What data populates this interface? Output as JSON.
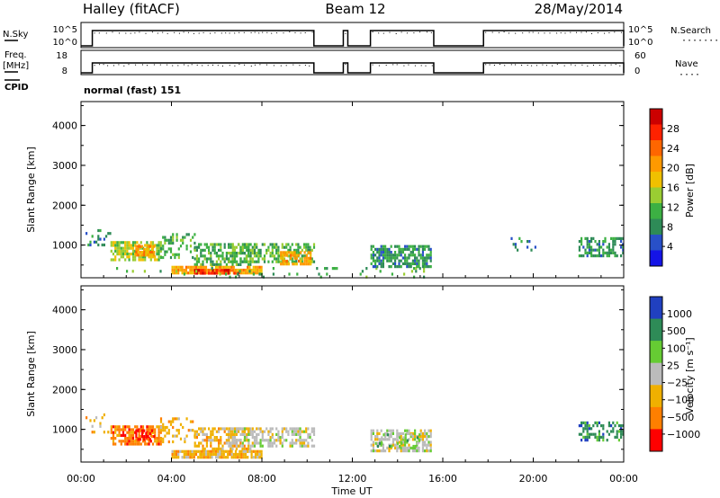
{
  "header": {
    "station": "Halley (fitACF)",
    "beam": "Beam 12",
    "date": "28/May/2014"
  },
  "strips": {
    "nsky_label": "N.Sky",
    "nsky_ticks": [
      "10^5",
      "10^0"
    ],
    "nsearch_label": "N.Search",
    "nsearch_ticks": [
      "10^5",
      "10^0"
    ],
    "freq_label_1": "Freq.",
    "freq_label_2": "[MHz]",
    "freq_ticks": [
      "18",
      "8"
    ],
    "nave_label": "Nave",
    "nave_ticks": [
      "60",
      "0"
    ],
    "cpid_label": "CPID",
    "cpid_value": "normal (fast) 151"
  },
  "colors": {
    "power": [
      "#1414e6",
      "#2850c8",
      "#2e8b57",
      "#3cb043",
      "#9acd32",
      "#f0c000",
      "#ff9900",
      "#ff6600",
      "#ff2200",
      "#cc0000"
    ],
    "velocity": [
      "#2040c0",
      "#2e8b57",
      "#66cc33",
      "#bbbbbb",
      "#f0b000",
      "#ff7f00",
      "#ff0000"
    ]
  },
  "chart_data": [
    {
      "type": "heatmap",
      "panel": "power",
      "ylabel": "Slant Range [km]",
      "yticks": [
        "1000",
        "2000",
        "3000",
        "4000"
      ],
      "ylim": [
        180,
        4600
      ],
      "xlim": [
        0,
        24
      ],
      "colorbar_label": "Power [dB]",
      "colorbar_ticks": [
        "4",
        "8",
        "12",
        "16",
        "20",
        "24",
        "28"
      ],
      "colorbar_range": [
        0,
        32
      ],
      "regions": [
        {
          "t": [
            0.2,
            1.3
          ],
          "r": [
            900,
            1400
          ],
          "level": 8,
          "density": 0.15
        },
        {
          "t": [
            1.3,
            3.5
          ],
          "r": [
            600,
            1100
          ],
          "level": 14,
          "density": 0.7
        },
        {
          "t": [
            2.4,
            3.2
          ],
          "r": [
            750,
            1000
          ],
          "level": 22,
          "density": 0.8
        },
        {
          "t": [
            3.5,
            5.0
          ],
          "r": [
            700,
            1300
          ],
          "level": 10,
          "density": 0.35
        },
        {
          "t": [
            5.0,
            7.5
          ],
          "r": [
            500,
            1050
          ],
          "level": 10,
          "density": 0.55
        },
        {
          "t": [
            6.5,
            10.3
          ],
          "r": [
            550,
            1050
          ],
          "level": 11,
          "density": 0.6
        },
        {
          "t": [
            8.8,
            10.2
          ],
          "r": [
            550,
            850
          ],
          "level": 20,
          "density": 0.6
        },
        {
          "t": [
            4.0,
            8.0
          ],
          "r": [
            280,
            480
          ],
          "level": 20,
          "density": 0.85
        },
        {
          "t": [
            5.0,
            7.0
          ],
          "r": [
            280,
            400
          ],
          "level": 28,
          "density": 0.8
        },
        {
          "t": [
            0.5,
            16.0
          ],
          "r": [
            190,
            450
          ],
          "level": 10,
          "density": 0.08
        },
        {
          "t": [
            12.8,
            15.5
          ],
          "r": [
            450,
            1000
          ],
          "level": 8,
          "density": 0.7
        },
        {
          "t": [
            19.0,
            20.5
          ],
          "r": [
            900,
            1200
          ],
          "level": 6,
          "density": 0.15
        },
        {
          "t": [
            22.0,
            24.0
          ],
          "r": [
            700,
            1200
          ],
          "level": 8,
          "density": 0.45
        }
      ]
    },
    {
      "type": "heatmap",
      "panel": "velocity",
      "ylabel": "Slant Range [km]",
      "yticks": [
        "1000",
        "2000",
        "3000",
        "4000"
      ],
      "ylim": [
        180,
        4600
      ],
      "xlim": [
        0,
        24
      ],
      "xlabel": "Time UT",
      "xticks": [
        "00:00",
        "04:00",
        "08:00",
        "12:00",
        "16:00",
        "20:00",
        "00:00"
      ],
      "colorbar_label": "Velocity [m s⁻¹]",
      "colorbar_ticks": [
        "1000",
        "500",
        "100",
        "25",
        "−25",
        "−100",
        "−500",
        "−1000"
      ],
      "regions": [
        {
          "t": [
            0.2,
            1.3
          ],
          "r": [
            900,
            1400
          ],
          "level": 4,
          "density": 0.15
        },
        {
          "t": [
            1.3,
            3.5
          ],
          "r": [
            600,
            1100
          ],
          "level": 5,
          "density": 0.7
        },
        {
          "t": [
            2.4,
            3.2
          ],
          "r": [
            750,
            1000
          ],
          "level": 6,
          "density": 0.7
        },
        {
          "t": [
            3.5,
            5.0
          ],
          "r": [
            700,
            1300
          ],
          "level": 4,
          "density": 0.3
        },
        {
          "t": [
            5.0,
            7.5
          ],
          "r": [
            500,
            1050
          ],
          "level": 4,
          "density": 0.55
        },
        {
          "t": [
            6.5,
            10.3
          ],
          "r": [
            550,
            1050
          ],
          "level": 3,
          "density": 0.6
        },
        {
          "t": [
            4.0,
            8.0
          ],
          "r": [
            280,
            480
          ],
          "level": 4,
          "density": 0.85
        },
        {
          "t": [
            12.8,
            15.5
          ],
          "r": [
            450,
            1000
          ],
          "level": 3,
          "density": 0.7
        },
        {
          "t": [
            13.0,
            15.0
          ],
          "r": [
            600,
            900
          ],
          "level": 2,
          "density": 0.3
        },
        {
          "t": [
            22.0,
            24.0
          ],
          "r": [
            700,
            1200
          ],
          "level": 1,
          "density": 0.45
        }
      ]
    }
  ],
  "operation": {
    "active_intervals": [
      [
        0.5,
        10.3
      ],
      [
        11.6,
        11.8
      ],
      [
        12.8,
        15.6
      ],
      [
        17.8,
        24.0
      ]
    ]
  }
}
